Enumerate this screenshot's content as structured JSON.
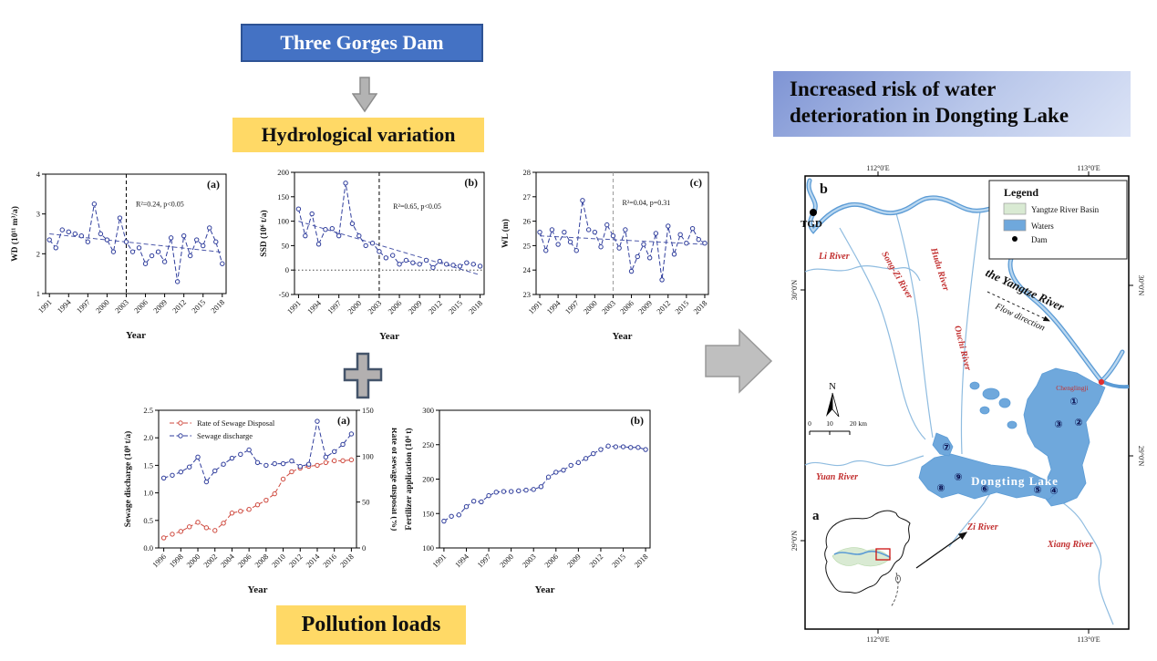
{
  "flowchart": {
    "tgd_box": "Three Gorges Dam",
    "hydro_box": "Hydrological variation",
    "pollution_box": "Pollution loads",
    "risk_line1": "Increased risk of water",
    "risk_line2": "deterioration in Dongting Lake",
    "colors": {
      "blue_box": "#4472c4",
      "yellow_box": "#ffd966",
      "risk_gradient_start": "#7e94d4",
      "risk_gradient_end": "#dbe3f6"
    }
  },
  "chart_data": [
    {
      "id": "wd",
      "type": "line",
      "panel": "(a)",
      "x": [
        1991,
        1992,
        1993,
        1994,
        1995,
        1996,
        1997,
        1998,
        1999,
        2000,
        2001,
        2002,
        2003,
        2004,
        2005,
        2006,
        2007,
        2008,
        2009,
        2010,
        2011,
        2012,
        2013,
        2014,
        2015,
        2016,
        2017,
        2018
      ],
      "series": [
        {
          "name": "WD",
          "color": "#2f3d9c",
          "values": [
            2.35,
            2.15,
            2.6,
            2.55,
            2.5,
            2.45,
            2.3,
            3.25,
            2.5,
            2.35,
            2.05,
            2.9,
            2.3,
            2.05,
            2.15,
            1.75,
            1.95,
            2.05,
            1.8,
            2.4,
            1.3,
            2.45,
            1.95,
            2.35,
            2.2,
            2.65,
            2.3,
            1.75
          ]
        }
      ],
      "ylabel": "WD (10¹¹ m³/a)",
      "xlabel": "Year",
      "ylim": [
        1,
        4
      ],
      "yticks": [
        1,
        2,
        3,
        4
      ],
      "xticks": [
        1991,
        1994,
        1997,
        2000,
        2003,
        2006,
        2009,
        2012,
        2015,
        2018
      ],
      "annotation": "R²=0.24, p<0.05",
      "ann": [
        0.5,
        0.27
      ],
      "vline": 2003,
      "vcolor": "#000",
      "trend": [
        [
          1991,
          2.5
        ],
        [
          2018,
          2.04
        ]
      ]
    },
    {
      "id": "ssd",
      "type": "line",
      "panel": "(b)",
      "x": [
        1991,
        1992,
        1993,
        1994,
        1995,
        1996,
        1997,
        1998,
        1999,
        2000,
        2001,
        2002,
        2003,
        2004,
        2005,
        2006,
        2007,
        2008,
        2009,
        2010,
        2011,
        2012,
        2013,
        2014,
        2015,
        2016,
        2017,
        2018
      ],
      "series": [
        {
          "name": "SSD",
          "color": "#2f3d9c",
          "values": [
            125,
            70,
            115,
            53,
            83,
            85,
            70,
            178,
            95,
            70,
            50,
            55,
            38,
            25,
            30,
            12,
            20,
            15,
            12,
            20,
            5,
            18,
            12,
            10,
            8,
            15,
            12,
            8
          ]
        }
      ],
      "ylabel": "SSD (10⁶ t/a)",
      "xlabel": "Year",
      "ylim": [
        -50,
        200
      ],
      "yticks": [
        -50,
        0,
        50,
        100,
        150,
        200
      ],
      "xticks": [
        1991,
        1994,
        1997,
        2000,
        2003,
        2006,
        2009,
        2012,
        2015,
        2018
      ],
      "annotation": "R²=0.65, p<0.05",
      "ann": [
        0.52,
        0.3
      ],
      "vline": 2003,
      "vcolor": "#000",
      "hline": 0,
      "trend": [
        [
          1991,
          100
        ],
        [
          2018,
          -10
        ]
      ]
    },
    {
      "id": "wl",
      "type": "line",
      "panel": "(c)",
      "x": [
        1991,
        1992,
        1993,
        1994,
        1995,
        1996,
        1997,
        1998,
        1999,
        2000,
        2001,
        2002,
        2003,
        2004,
        2005,
        2006,
        2007,
        2008,
        2009,
        2010,
        2011,
        2012,
        2013,
        2014,
        2015,
        2016,
        2017,
        2018
      ],
      "series": [
        {
          "name": "WL",
          "color": "#2f3d9c",
          "values": [
            25.55,
            24.8,
            25.65,
            25.05,
            25.55,
            25.15,
            24.8,
            26.85,
            25.65,
            25.55,
            24.95,
            25.85,
            25.4,
            24.9,
            25.65,
            23.95,
            24.55,
            25.05,
            24.5,
            25.5,
            23.6,
            25.8,
            24.65,
            25.45,
            25.1,
            25.7,
            25.25,
            25.1
          ]
        }
      ],
      "ylabel": "WL (m)",
      "xlabel": "Year",
      "ylim": [
        23,
        28
      ],
      "yticks": [
        23,
        24,
        25,
        26,
        27,
        28
      ],
      "xticks": [
        1991,
        1994,
        1997,
        2000,
        2003,
        2006,
        2009,
        2012,
        2015,
        2018
      ],
      "annotation": "R²=0.04, p=0.31",
      "ann": [
        0.5,
        0.27
      ],
      "vline": 2003,
      "vcolor": "#999",
      "trend": [
        [
          1991,
          25.4
        ],
        [
          2018,
          25.05
        ]
      ]
    },
    {
      "id": "sewage",
      "type": "line",
      "panel": "(a)",
      "legend": true,
      "x": [
        1996,
        1997,
        1998,
        1999,
        2000,
        2001,
        2002,
        2003,
        2004,
        2005,
        2006,
        2007,
        2008,
        2009,
        2010,
        2011,
        2012,
        2013,
        2014,
        2015,
        2016,
        2017,
        2018
      ],
      "series": [
        {
          "name": "Rate of Sewage Disposal",
          "color": "#cf4a3f",
          "axis": "right",
          "values": [
            11,
            15,
            18,
            23,
            28,
            22,
            19,
            27,
            38,
            40,
            42,
            47,
            52,
            59,
            75,
            83,
            87,
            89,
            90,
            93,
            95,
            95,
            96
          ]
        },
        {
          "name": "Sewage discharge",
          "color": "#2f3d9c",
          "axis": "left",
          "values": [
            1.27,
            1.32,
            1.38,
            1.47,
            1.65,
            1.2,
            1.4,
            1.52,
            1.63,
            1.7,
            1.78,
            1.55,
            1.5,
            1.53,
            1.53,
            1.58,
            1.48,
            1.52,
            2.3,
            1.65,
            1.75,
            1.88,
            2.07
          ]
        }
      ],
      "ylabel": "Sewage discharge (10⁸ t/a)",
      "xlabel": "Year",
      "ylim": [
        0,
        2.5
      ],
      "yticks": [
        0,
        0.5,
        1,
        1.5,
        2,
        2.5
      ],
      "ylabels": [
        "0.0",
        "0.5",
        "1.0",
        "1.5",
        "2.0",
        "2.5"
      ],
      "y2label": "Rate of sewage disposal (%)",
      "y2lim": [
        0,
        150
      ],
      "y2ticks": [
        0,
        50,
        100,
        150
      ],
      "xticks": [
        1996,
        1998,
        2000,
        2002,
        2004,
        2006,
        2008,
        2010,
        2012,
        2014,
        2016,
        2018
      ]
    },
    {
      "id": "fertilizer",
      "type": "line",
      "panel": "(b)",
      "x": [
        1991,
        1992,
        1993,
        1994,
        1995,
        1996,
        1997,
        1998,
        1999,
        2000,
        2001,
        2002,
        2003,
        2004,
        2005,
        2006,
        2007,
        2008,
        2009,
        2010,
        2011,
        2012,
        2013,
        2014,
        2015,
        2016,
        2017,
        2018
      ],
      "series": [
        {
          "name": "Fertilizer application",
          "color": "#2f3d9c",
          "values": [
            139,
            146,
            148,
            160,
            168,
            167,
            176,
            181,
            182,
            182,
            183,
            184,
            185,
            189,
            203,
            210,
            213,
            220,
            224,
            230,
            237,
            243,
            248,
            247,
            247,
            246,
            246,
            243
          ]
        }
      ],
      "ylabel": "Fertilizer application (10⁴ t)",
      "xlabel": "Year",
      "ylim": [
        100,
        300
      ],
      "yticks": [
        100,
        150,
        200,
        250,
        300
      ],
      "xticks": [
        1991,
        1994,
        1997,
        2000,
        2003,
        2006,
        2009,
        2012,
        2015,
        2018
      ]
    }
  ],
  "map": {
    "panel_b": "b",
    "panel_a": "a",
    "tgd": "TGD",
    "legend": {
      "title": "Legend",
      "item_basin": "Yangtze River Basin",
      "item_waters": "Waters",
      "item_dam": "Dam",
      "basin_color": "#d9ead3",
      "waters_color": "#6fa8dc"
    },
    "rivers": {
      "songzi": "Song-Zi River",
      "hudu": "Hudu River",
      "ouchi": "Ouchi River",
      "li": "Li River",
      "yuan": "Yuan River",
      "zi": "Zi River",
      "xiang": "Xiang River"
    },
    "yangtze_label": "the Yangtze River",
    "flow_label": "Flow direction",
    "lake_label": "Dongting Lake",
    "city_label": "Chenglingji",
    "north": "N",
    "scale": {
      "t0": "0",
      "t10": "10",
      "t20": "20 km"
    },
    "coords": {
      "top_left": "112°0'E",
      "top_right": "113°0'E",
      "bottom_left": "112°0'E",
      "bottom_right": "113°0'E",
      "left_top": "30°0'N",
      "left_bottom": "29°0'N",
      "right_top": "30°0'N",
      "right_bottom": "29°0'N"
    },
    "sites": [
      "①",
      "②",
      "③",
      "④",
      "⑤",
      "⑥",
      "⑦",
      "⑧",
      "⑨"
    ]
  }
}
